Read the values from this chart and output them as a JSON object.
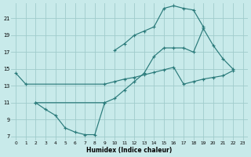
{
  "background_color": "#c8eaea",
  "grid_color": "#a0cccc",
  "line_color": "#2a7a7a",
  "xlabel": "Humidex (Indice chaleur)",
  "xlim": [
    -0.5,
    23.5
  ],
  "ylim": [
    6.5,
    22.8
  ],
  "yticks": [
    7,
    9,
    11,
    13,
    15,
    17,
    19,
    21
  ],
  "xticks": [
    0,
    1,
    2,
    3,
    4,
    5,
    6,
    7,
    8,
    9,
    10,
    11,
    12,
    13,
    14,
    15,
    16,
    17,
    18,
    19,
    20,
    21,
    22,
    23
  ],
  "series": [
    {
      "x": [
        0,
        1,
        9,
        10,
        11,
        12,
        13,
        14,
        15,
        16,
        17,
        18,
        19,
        20,
        21,
        22
      ],
      "y": [
        14.5,
        13.2,
        13.2,
        13.5,
        13.8,
        14.0,
        14.3,
        14.6,
        14.9,
        15.2,
        13.2,
        13.5,
        13.8,
        14.0,
        14.2,
        14.8
      ]
    },
    {
      "x": [
        2,
        3,
        4,
        5,
        6,
        7,
        8,
        9
      ],
      "y": [
        11.0,
        10.2,
        9.5,
        8.0,
        7.5,
        7.2,
        7.2,
        11.0
      ]
    },
    {
      "x": [
        2,
        9,
        10,
        11,
        12,
        13,
        14,
        15,
        16,
        17,
        18,
        19,
        20,
        21,
        22
      ],
      "y": [
        11.0,
        11.0,
        11.5,
        12.5,
        13.5,
        14.5,
        16.5,
        17.5,
        17.5,
        17.5,
        17.0,
        19.8,
        17.8,
        16.2,
        15.0
      ]
    },
    {
      "x": [
        10,
        11,
        12,
        13,
        14,
        15,
        16,
        17,
        18,
        19
      ],
      "y": [
        17.2,
        18.0,
        19.0,
        19.5,
        20.0,
        22.2,
        22.5,
        22.2,
        22.0,
        20.0
      ]
    }
  ]
}
